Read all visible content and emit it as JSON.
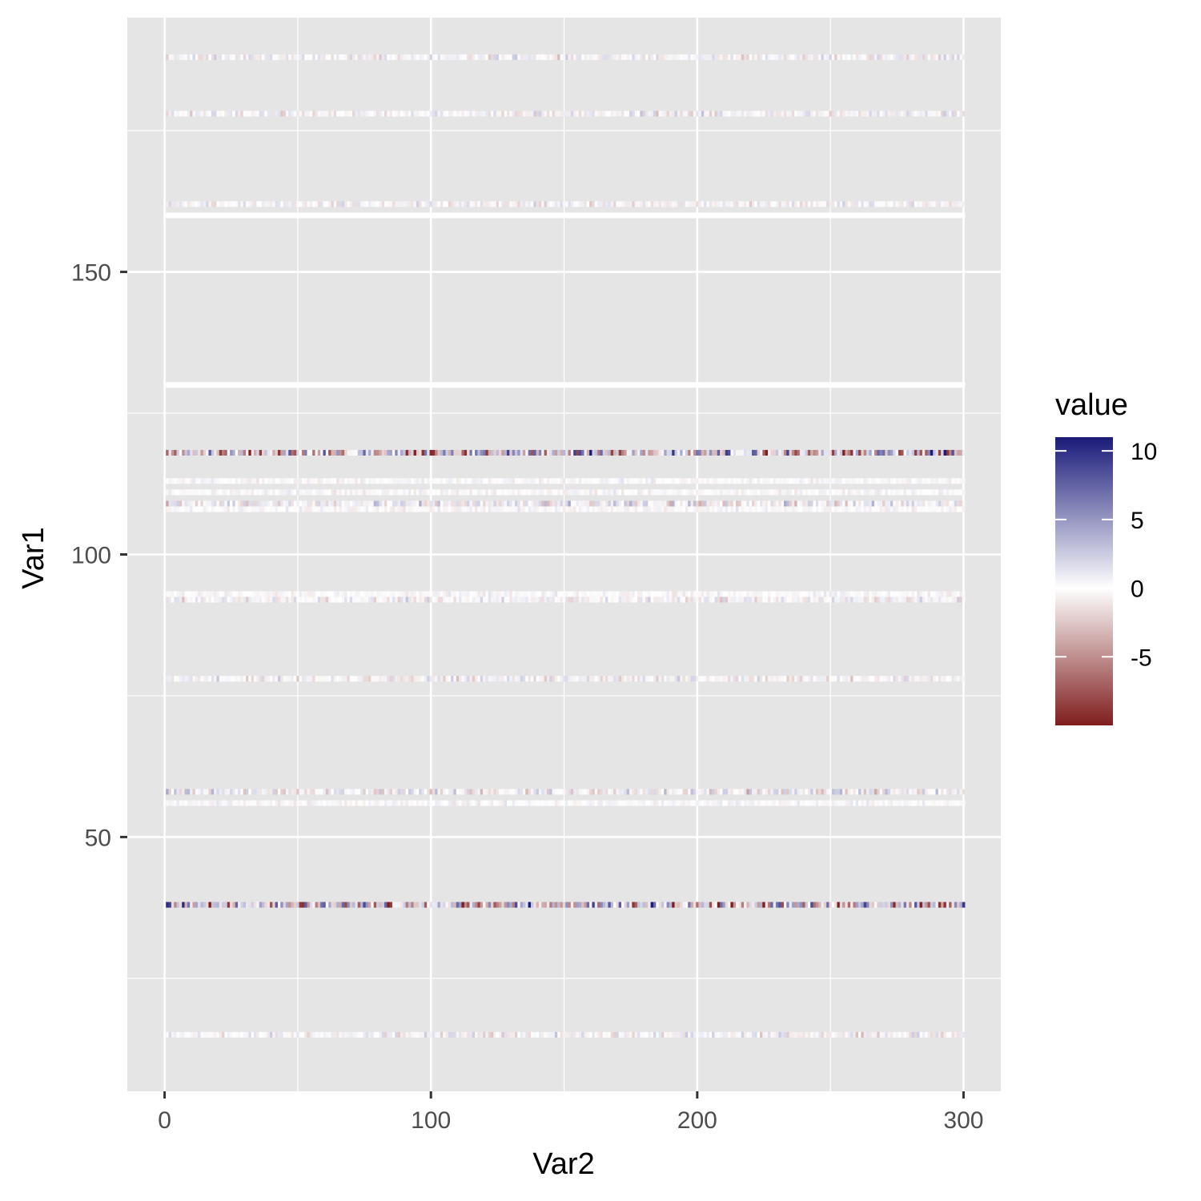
{
  "chart_data": {
    "type": "heatmap",
    "title": "",
    "xlabel": "Var2",
    "ylabel": "Var1",
    "xlim": [
      -14,
      314
    ],
    "ylim": [
      5,
      195
    ],
    "x_ticks": [
      0,
      100,
      200,
      300
    ],
    "x_tick_labels": [
      "0",
      "100",
      "200",
      "300"
    ],
    "y_ticks": [
      50,
      100,
      150
    ],
    "y_tick_labels": [
      "50",
      "100",
      "150"
    ],
    "x_range": [
      1,
      300
    ],
    "rows": [
      {
        "var1": 15,
        "amplitude": 2
      },
      {
        "var1": 38,
        "amplitude": 9
      },
      {
        "var1": 56,
        "amplitude": 1
      },
      {
        "var1": 58,
        "amplitude": 3
      },
      {
        "var1": 78,
        "amplitude": 2
      },
      {
        "var1": 92,
        "amplitude": 2
      },
      {
        "var1": 93,
        "amplitude": 1
      },
      {
        "var1": 108,
        "amplitude": 1
      },
      {
        "var1": 109,
        "amplitude": 3
      },
      {
        "var1": 111,
        "amplitude": 1
      },
      {
        "var1": 113,
        "amplitude": 1
      },
      {
        "var1": 118,
        "amplitude": 9
      },
      {
        "var1": 130,
        "amplitude": 0
      },
      {
        "var1": 160,
        "amplitude": 0
      },
      {
        "var1": 162,
        "amplitude": 2
      },
      {
        "var1": 178,
        "amplitude": 2
      },
      {
        "var1": 188,
        "amplitude": 2
      }
    ],
    "legend": {
      "title": "value",
      "position": "right",
      "breaks": [
        10,
        5,
        0,
        -5
      ],
      "break_labels": [
        "10",
        "5",
        "0",
        "-5"
      ],
      "range": [
        -10,
        11
      ],
      "low_color": "#7f1d1d",
      "mid_color": "#ffffff",
      "high_color": "#1a1a7a"
    },
    "panel_background": "#e5e5e5",
    "grid": true
  }
}
